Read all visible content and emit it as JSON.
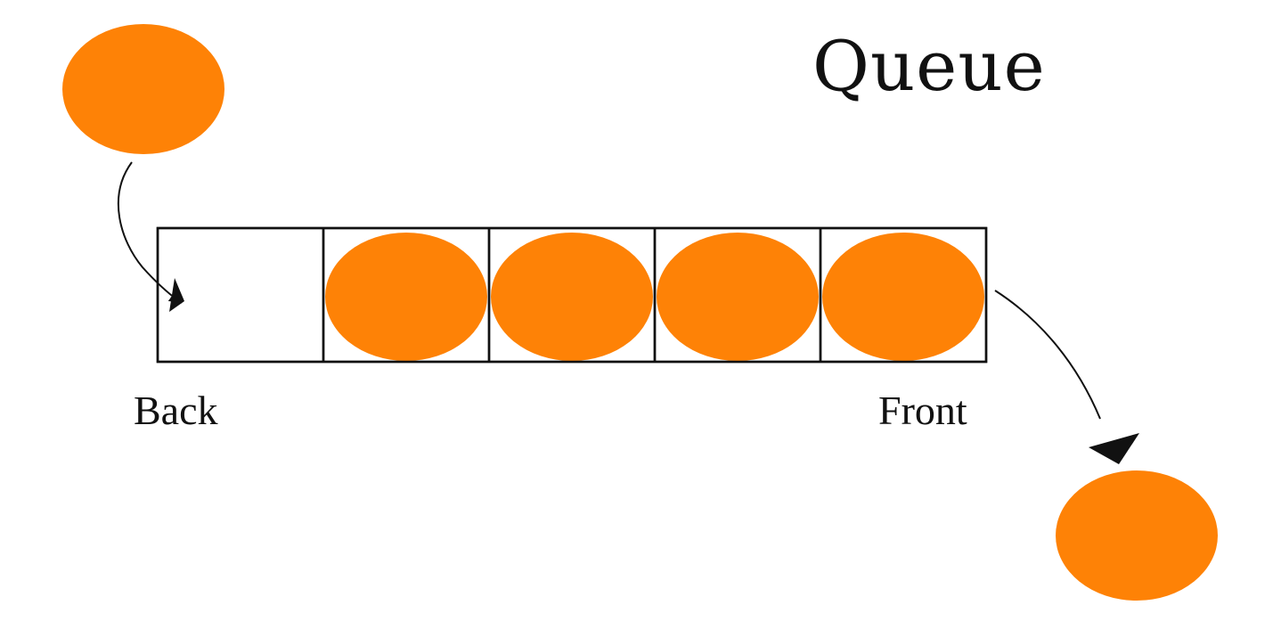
{
  "title": "Queue",
  "labels": {
    "back": "Back",
    "front": "Front"
  },
  "queue": {
    "slots": 5,
    "filled": [
      false,
      true,
      true,
      true,
      true
    ]
  },
  "colors": {
    "element": "#fe8206",
    "outline": "#111111",
    "arrow": "#111111",
    "background": "#ffffff"
  }
}
